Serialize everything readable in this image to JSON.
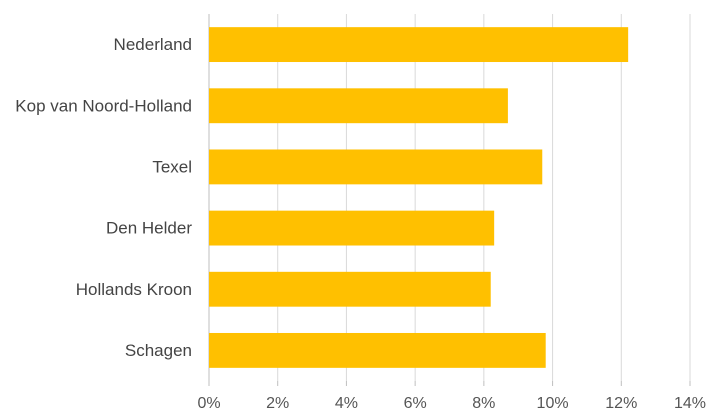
{
  "chart_data": {
    "type": "bar",
    "orientation": "horizontal",
    "categories": [
      "Nederland",
      "Kop van Noord-Holland",
      "Texel",
      "Den Helder",
      "Hollands Kroon",
      "Schagen"
    ],
    "values": [
      12.2,
      8.7,
      9.7,
      8.3,
      8.2,
      9.8
    ],
    "xlim": [
      0,
      14
    ],
    "xticks": [
      0,
      2,
      4,
      6,
      8,
      10,
      12,
      14
    ],
    "tick_labels": [
      "0%",
      "2%",
      "4%",
      "6%",
      "8%",
      "10%",
      "12%",
      "14%"
    ],
    "grid": true,
    "legend": "none",
    "bar_color": "#FFC000"
  }
}
